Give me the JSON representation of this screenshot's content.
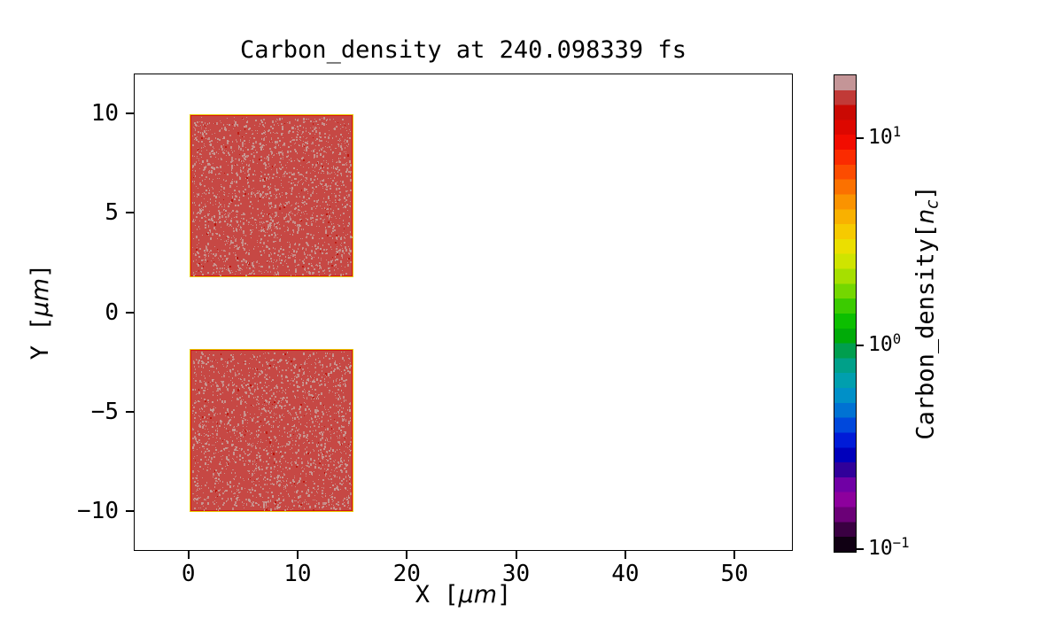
{
  "title": "Carbon_density at 240.098339 fs",
  "axes": {
    "x": {
      "label_pre": "X [",
      "label_unit": "μm",
      "label_post": "]",
      "min": -5,
      "max": 55.34,
      "ticks": [
        {
          "v": 0,
          "label": "0"
        },
        {
          "v": 10,
          "label": "10"
        },
        {
          "v": 20,
          "label": "20"
        },
        {
          "v": 30,
          "label": "30"
        },
        {
          "v": 40,
          "label": "40"
        },
        {
          "v": 50,
          "label": "50"
        }
      ]
    },
    "y": {
      "label_pre": "Y [",
      "label_unit": "μm",
      "label_post": "]",
      "min": -12,
      "max": 12,
      "ticks": [
        {
          "v": 10,
          "label": "10"
        },
        {
          "v": 5,
          "label": "5"
        },
        {
          "v": 0,
          "label": "0"
        },
        {
          "v": -5,
          "label": "−5"
        },
        {
          "v": -10,
          "label": "−10"
        }
      ]
    }
  },
  "colorbar": {
    "label_pre": "Carbon_density[",
    "label_var": "n",
    "label_sub": "c",
    "label_post": "]",
    "scale": "log",
    "ticks": [
      {
        "f": 0.134,
        "base": "10",
        "exp": "1",
        "value": 10
      },
      {
        "f": 0.567,
        "base": "10",
        "exp": "0",
        "value": 1
      },
      {
        "f": 0.993,
        "base": "10",
        "exp": "−1",
        "value": 0.1
      }
    ],
    "stops_top_to_bottom": [
      "#c49597",
      "#c13a37",
      "#ca0903",
      "#dd0700",
      "#f20c00",
      "#fb2b00",
      "#fc4c00",
      "#fb7100",
      "#fa9300",
      "#f9b100",
      "#f6ca00",
      "#ebdf00",
      "#cfe400",
      "#a6df00",
      "#74d700",
      "#3bcb00",
      "#0cbf00",
      "#00ab08",
      "#009e4e",
      "#00a089",
      "#009fae",
      "#0090c8",
      "#0072d3",
      "#0048dc",
      "#001bd8",
      "#0000bb",
      "#30009a",
      "#7000a5",
      "#8d009d",
      "#6b0077",
      "#3a0042",
      "#100013"
    ],
    "outline_color": "#000000"
  },
  "chart_data": {
    "type": "heatmap",
    "title": "Carbon_density at 240.098339 fs",
    "xlabel": "X [μm]",
    "ylabel": "Y [μm]",
    "xlim": [
      -5,
      55.34
    ],
    "ylim": [
      -12,
      12
    ],
    "x_ticks": [
      0,
      10,
      20,
      30,
      40,
      50
    ],
    "y_ticks": [
      10,
      5,
      0,
      -5,
      -10
    ],
    "grid": false,
    "colorbar": {
      "label": "Carbon_density[n_c]",
      "scale": "log",
      "tick_values": [
        10,
        1,
        0.1
      ],
      "range_approx": [
        0.095,
        20.5
      ],
      "position": "right"
    },
    "regions": [
      {
        "name": "upper-slab",
        "x_range_um": [
          0,
          15
        ],
        "y_range_um": [
          1.8,
          10
        ],
        "density_nc_approx": 15
      },
      {
        "name": "lower-slab",
        "x_range_um": [
          0,
          15
        ],
        "y_range_um": [
          -10,
          -1.8
        ],
        "density_nc_approx": 15
      }
    ],
    "background_density_nc": 0,
    "render": {
      "base_color": "#c64844",
      "speckle_color": "#c79b96",
      "speckle_dark": "#bb1208",
      "border_color": "#e8c900",
      "inner_line_color": "#d31414",
      "speckle_count": 2100,
      "seed": 42
    }
  }
}
